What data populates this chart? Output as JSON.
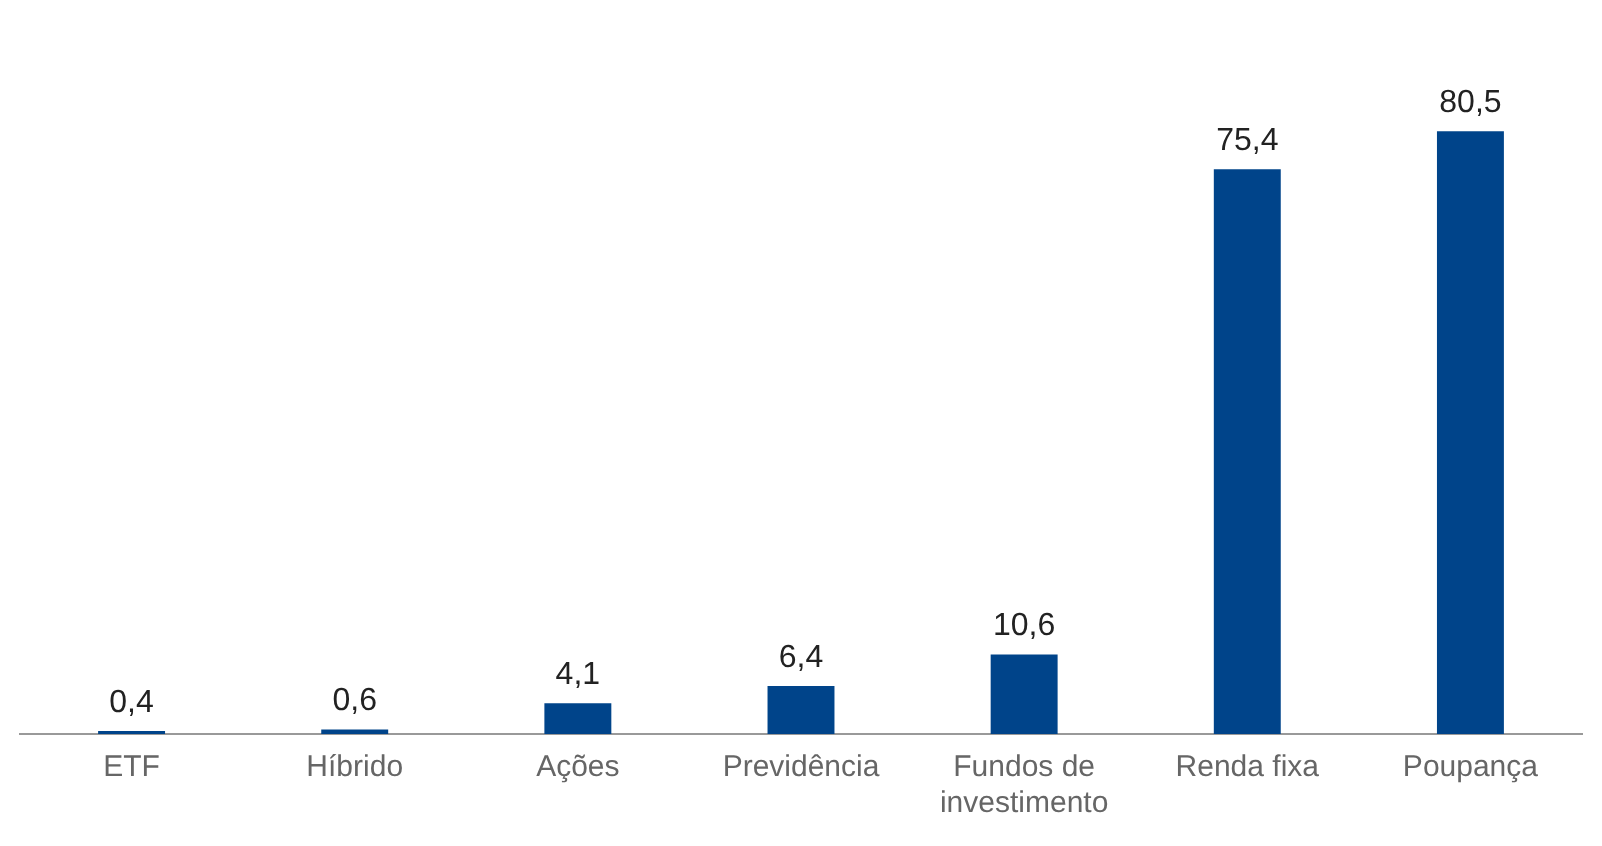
{
  "chart_data": {
    "type": "bar",
    "categories": [
      "ETF",
      "Híbrido",
      "Ações",
      "Previdência",
      "Fundos de investimento",
      "Renda fixa",
      "Poupança"
    ],
    "values": [
      0.4,
      0.6,
      4.1,
      6.4,
      10.6,
      75.4,
      80.5
    ],
    "value_labels": [
      "0,4",
      "0,6",
      "4,1",
      "6,4",
      "10,6",
      "75,4",
      "80,5"
    ],
    "color": "#00448a",
    "grid": false,
    "legend": false
  }
}
